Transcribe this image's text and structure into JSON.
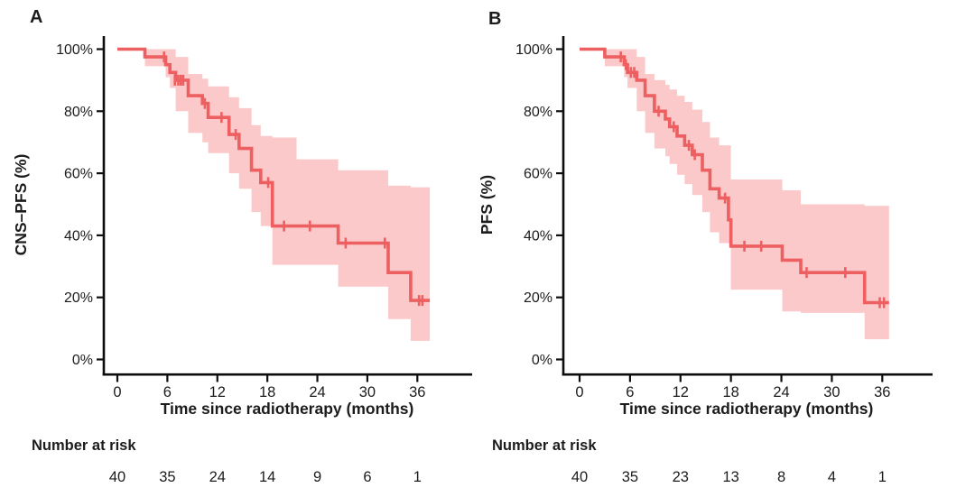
{
  "figure": {
    "background": "#ffffff",
    "colors": {
      "curve": "#ed5f60",
      "band": "#fbc9c9",
      "axis": "#0d0d0d",
      "text": "#1c1c1c"
    }
  },
  "chart_data": [
    {
      "type": "line",
      "subtype": "kaplan-meier-step",
      "panel_label": "A",
      "ylabel": "CNS–PFS (%)",
      "xlabel": "Time since radiotherapy (months)",
      "xlim": [
        0,
        42
      ],
      "ylim": [
        0,
        100
      ],
      "grid": false,
      "legend": "none",
      "x_ticks": [
        0,
        6,
        12,
        18,
        24,
        30,
        36
      ],
      "y_ticks": [
        [
          100,
          "100%"
        ],
        [
          80,
          "80%"
        ],
        [
          60,
          "60%"
        ],
        [
          40,
          "40%"
        ],
        [
          20,
          "20%"
        ],
        [
          0,
          "0%"
        ]
      ],
      "steps": [
        [
          0,
          100
        ],
        [
          3.3,
          97.5
        ],
        [
          5.8,
          95
        ],
        [
          6.3,
          92.5
        ],
        [
          7.0,
          90
        ],
        [
          8.5,
          85
        ],
        [
          10.2,
          82.5
        ],
        [
          10.9,
          78
        ],
        [
          13.4,
          72.5
        ],
        [
          14.6,
          68
        ],
        [
          16.1,
          61
        ],
        [
          17.2,
          57
        ],
        [
          18.6,
          43
        ],
        [
          26.5,
          37.5
        ],
        [
          32.5,
          28
        ],
        [
          35.2,
          19
        ]
      ],
      "end_time": 37.5,
      "censors": [
        [
          5.6,
          97.5
        ],
        [
          6.9,
          90
        ],
        [
          7.3,
          90
        ],
        [
          7.6,
          90
        ],
        [
          7.9,
          90
        ],
        [
          10.5,
          82.5
        ],
        [
          12.5,
          78
        ],
        [
          14.2,
          72.5
        ],
        [
          18.1,
          57
        ],
        [
          20.0,
          43
        ],
        [
          23.1,
          43
        ],
        [
          27.4,
          37.5
        ],
        [
          32.1,
          37.5
        ],
        [
          36.2,
          19
        ],
        [
          36.6,
          19
        ]
      ],
      "band": [
        [
          3.3,
          100,
          94.5
        ],
        [
          5.8,
          100,
          91
        ],
        [
          6.3,
          100,
          87.5
        ],
        [
          7.0,
          97.5,
          80
        ],
        [
          8.5,
          92,
          73
        ],
        [
          10.2,
          90.5,
          70
        ],
        [
          10.9,
          88,
          66.5
        ],
        [
          13.4,
          84.5,
          60
        ],
        [
          14.6,
          81,
          55
        ],
        [
          16.1,
          75.5,
          47.5
        ],
        [
          17.2,
          72,
          43
        ],
        [
          18.6,
          71.5,
          30.5
        ],
        [
          21.5,
          64.5,
          30.5
        ],
        [
          26.5,
          61,
          23.5
        ],
        [
          32.5,
          56,
          13
        ],
        [
          35.2,
          55.5,
          6
        ]
      ],
      "number_at_risk_label": "Number at risk",
      "number_at_risk": [
        40,
        35,
        24,
        14,
        9,
        6,
        1
      ]
    },
    {
      "type": "line",
      "subtype": "kaplan-meier-step",
      "panel_label": "B",
      "ylabel": "PFS (%)",
      "xlabel": "Time since radiotherapy (months)",
      "xlim": [
        0,
        42
      ],
      "ylim": [
        0,
        100
      ],
      "grid": false,
      "legend": "none",
      "x_ticks": [
        0,
        6,
        12,
        18,
        24,
        30,
        36
      ],
      "y_ticks": [
        [
          100,
          "100%"
        ],
        [
          80,
          "80%"
        ],
        [
          60,
          "60%"
        ],
        [
          40,
          "40%"
        ],
        [
          20,
          "20%"
        ],
        [
          0,
          "0%"
        ]
      ],
      "steps": [
        [
          0,
          100
        ],
        [
          3.0,
          97.5
        ],
        [
          5.3,
          95
        ],
        [
          5.7,
          92.5
        ],
        [
          6.8,
          90
        ],
        [
          7.8,
          85
        ],
        [
          8.9,
          80
        ],
        [
          10.2,
          77.5
        ],
        [
          10.7,
          75
        ],
        [
          11.6,
          72
        ],
        [
          12.5,
          69
        ],
        [
          13.4,
          66
        ],
        [
          14.6,
          61
        ],
        [
          15.5,
          55
        ],
        [
          16.6,
          52
        ],
        [
          17.7,
          45
        ],
        [
          18.0,
          36.5
        ],
        [
          24.1,
          32
        ],
        [
          26.3,
          28
        ],
        [
          33.9,
          18.3
        ]
      ],
      "end_time": 36.8,
      "censors": [
        [
          4.9,
          97.5
        ],
        [
          5.5,
          95
        ],
        [
          6.1,
          92.5
        ],
        [
          6.5,
          92.5
        ],
        [
          9.4,
          80
        ],
        [
          11.2,
          75
        ],
        [
          13.0,
          69
        ],
        [
          13.7,
          66
        ],
        [
          17.3,
          52
        ],
        [
          19.6,
          36.5
        ],
        [
          21.6,
          36.5
        ],
        [
          27.0,
          28
        ],
        [
          31.6,
          28
        ],
        [
          35.7,
          18.3
        ],
        [
          36.2,
          18.3
        ]
      ],
      "band": [
        [
          3.0,
          100,
          94.5
        ],
        [
          5.3,
          100,
          91
        ],
        [
          5.7,
          100,
          87.5
        ],
        [
          6.8,
          97.5,
          80
        ],
        [
          7.8,
          92,
          73
        ],
        [
          8.9,
          90,
          68
        ],
        [
          10.2,
          88.5,
          65.5
        ],
        [
          10.7,
          87,
          63
        ],
        [
          11.6,
          85,
          59.5
        ],
        [
          12.5,
          83,
          56.5
        ],
        [
          13.4,
          80.5,
          53
        ],
        [
          14.6,
          76.5,
          47.5
        ],
        [
          15.5,
          71.5,
          41
        ],
        [
          16.6,
          69,
          37.5
        ],
        [
          18.0,
          58,
          22.5
        ],
        [
          24.1,
          54.5,
          15.5
        ],
        [
          26.3,
          50,
          15
        ],
        [
          33.9,
          49.5,
          6.5
        ]
      ],
      "number_at_risk_label": "Number at risk",
      "number_at_risk": [
        40,
        35,
        23,
        13,
        8,
        4,
        1
      ]
    }
  ]
}
